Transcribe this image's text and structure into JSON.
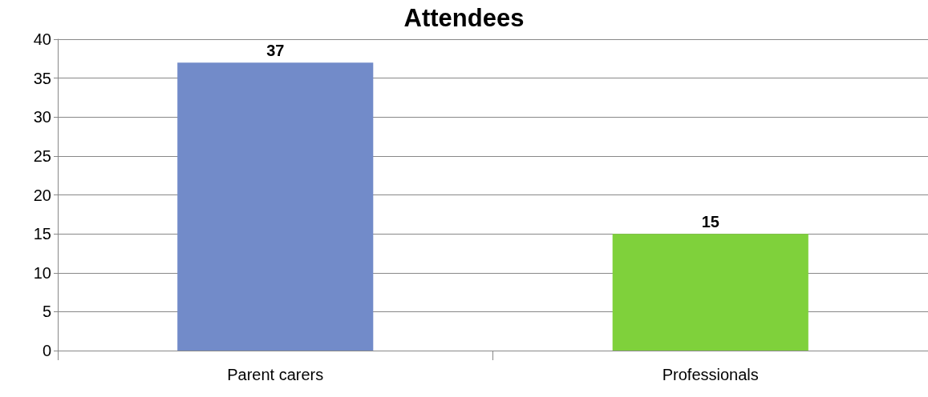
{
  "chart_data": {
    "type": "bar",
    "title": "Attendees",
    "categories": [
      "Parent carers",
      "Professionals"
    ],
    "values": [
      37,
      15
    ],
    "colors": [
      "#728bc9",
      "#7fd13b"
    ],
    "ylim": [
      0,
      40
    ],
    "yticks": [
      0,
      5,
      10,
      15,
      20,
      25,
      30,
      35,
      40
    ],
    "grid": "y",
    "data_labels": true
  }
}
